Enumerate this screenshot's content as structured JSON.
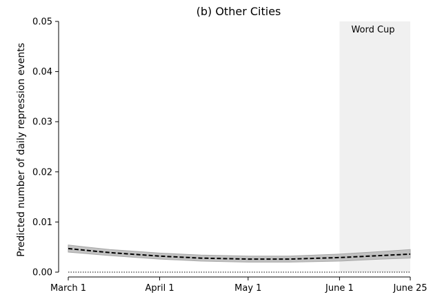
{
  "chart_data": {
    "type": "line",
    "title": "(b) Other Cities",
    "ylabel": "Predicted number of daily repression events",
    "xlabel": "",
    "x_ticks": [
      {
        "label": "March 1",
        "day": 0
      },
      {
        "label": "April 1",
        "day": 31
      },
      {
        "label": "May 1",
        "day": 61
      },
      {
        "label": "June 1",
        "day": 92
      },
      {
        "label": "June 25",
        "day": 116
      }
    ],
    "xlim": [
      "March 1",
      "June 25"
    ],
    "ylim": [
      0,
      0.05
    ],
    "y_ticks": [
      "0.00",
      "0.01",
      "0.02",
      "0.03",
      "0.04",
      "0.05"
    ],
    "grid": false,
    "shaded_region": {
      "label": "Word Cup",
      "start": "June 1",
      "end": "June 25",
      "color": "#f0f0f0"
    },
    "reference_line": {
      "y": 0,
      "style": "dotted"
    },
    "series": [
      {
        "style": "dashed",
        "color": "#000000",
        "ci_color": "#bdbdbd",
        "points": [
          {
            "x": "March 1",
            "y": 0.0047,
            "lower": 0.004,
            "upper": 0.0054
          },
          {
            "x": "March 15",
            "y": 0.0039,
            "lower": 0.0033,
            "upper": 0.0045
          },
          {
            "x": "April 1",
            "y": 0.0032,
            "lower": 0.0026,
            "upper": 0.0038
          },
          {
            "x": "April 15",
            "y": 0.0028,
            "lower": 0.0022,
            "upper": 0.0034
          },
          {
            "x": "May 1",
            "y": 0.0026,
            "lower": 0.002,
            "upper": 0.0032
          },
          {
            "x": "May 15",
            "y": 0.0026,
            "lower": 0.002,
            "upper": 0.0032
          },
          {
            "x": "June 1",
            "y": 0.0029,
            "lower": 0.0022,
            "upper": 0.0036
          },
          {
            "x": "June 15",
            "y": 0.0033,
            "lower": 0.0026,
            "upper": 0.0041
          },
          {
            "x": "June 25",
            "y": 0.0036,
            "lower": 0.0028,
            "upper": 0.0045
          }
        ]
      }
    ]
  }
}
